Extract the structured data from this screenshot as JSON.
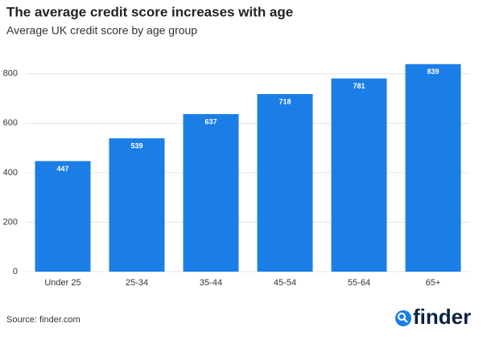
{
  "chart_data": {
    "type": "bar",
    "title": "The average credit score increases with age",
    "subtitle": "Average UK credit score by age group",
    "categories": [
      "Under 25",
      "25-34",
      "35-44",
      "45-54",
      "55-64",
      "65+"
    ],
    "values": [
      447,
      539,
      637,
      718,
      781,
      839
    ],
    "color": "#1b7ee6",
    "ylim": [
      0,
      900
    ],
    "yticks": [
      0,
      200,
      400,
      600,
      800
    ],
    "grid": true,
    "source": "Source: finder.com",
    "logo": "finder"
  }
}
